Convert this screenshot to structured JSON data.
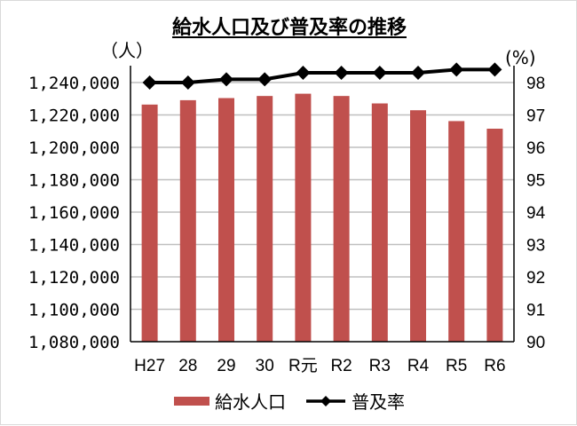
{
  "chart_data": {
    "type": "bar+line",
    "title": "給水人口及び普及率の推移",
    "categories": [
      "H27",
      "28",
      "29",
      "30",
      "R元",
      "R2",
      "R3",
      "R4",
      "R5",
      "R6"
    ],
    "series": [
      {
        "name": "給水人口",
        "type": "bar",
        "axis": "left",
        "color": "#c0504d",
        "values": [
          1226400,
          1229100,
          1230400,
          1231700,
          1233100,
          1231700,
          1227100,
          1222900,
          1216200,
          1211500
        ]
      },
      {
        "name": "普及率",
        "type": "line",
        "axis": "right",
        "color": "#000000",
        "marker": "diamond",
        "values": [
          98.0,
          98.0,
          98.1,
          98.1,
          98.3,
          98.3,
          98.3,
          98.3,
          98.4,
          98.4
        ]
      }
    ],
    "ylabel_left": "（人）",
    "ylabel_right": "(%)",
    "ylim_left": [
      1080000,
      1240000
    ],
    "ylim_right": [
      90,
      98
    ],
    "yticks_left": [
      "1,240,000",
      "1,220,000",
      "1,200,000",
      "1,180,000",
      "1,160,000",
      "1,140,000",
      "1,120,000",
      "1,100,000",
      "1,080,000"
    ],
    "yticks_right": [
      "98",
      "97",
      "96",
      "95",
      "94",
      "93",
      "92",
      "91",
      "90"
    ],
    "grid": true,
    "legend_position": "bottom"
  },
  "header": {
    "title": "給水人口及び普及率の推移",
    "unit_left": "（人）",
    "unit_right": "(%)"
  },
  "legend": {
    "bar_label": "給水人口",
    "line_label": "普及率"
  }
}
